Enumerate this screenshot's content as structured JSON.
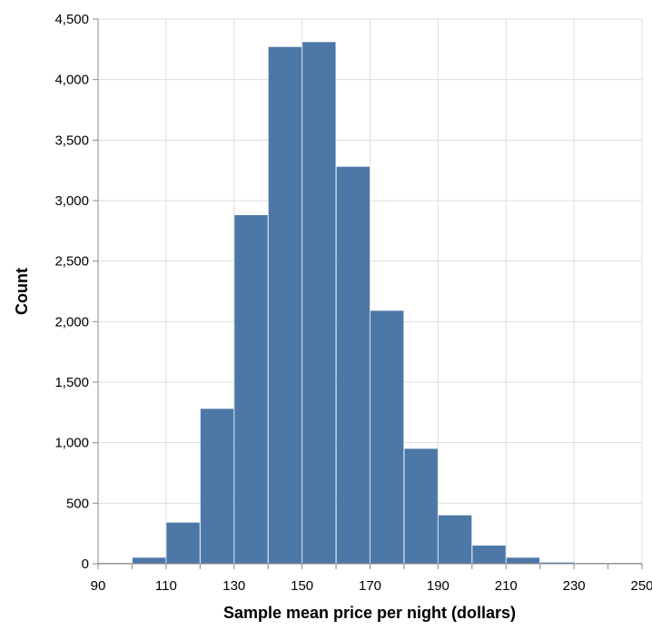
{
  "chart_data": {
    "type": "bar",
    "title": "",
    "xlabel": "Sample mean price per night (dollars)",
    "ylabel": "Count",
    "bin_width": 10,
    "xlim": [
      90,
      250
    ],
    "ylim": [
      0,
      4500
    ],
    "x_ticks": [
      90,
      110,
      130,
      150,
      170,
      190,
      210,
      230,
      250
    ],
    "y_ticks": [
      0,
      500,
      1000,
      1500,
      2000,
      2500,
      3000,
      3500,
      4000,
      4500
    ],
    "x_tick_labels": [
      "90",
      "110",
      "130",
      "150",
      "170",
      "190",
      "210",
      "230",
      "250"
    ],
    "y_tick_labels": [
      "0",
      "500",
      "1,000",
      "1,500",
      "2,000",
      "2,500",
      "3,000",
      "3,500",
      "4,000",
      "4,500"
    ],
    "bins": [
      {
        "start": 90,
        "count": 0
      },
      {
        "start": 100,
        "count": 50
      },
      {
        "start": 110,
        "count": 340
      },
      {
        "start": 120,
        "count": 1280
      },
      {
        "start": 130,
        "count": 2880
      },
      {
        "start": 140,
        "count": 4270
      },
      {
        "start": 150,
        "count": 4310
      },
      {
        "start": 160,
        "count": 3280
      },
      {
        "start": 170,
        "count": 2090
      },
      {
        "start": 180,
        "count": 950
      },
      {
        "start": 190,
        "count": 400
      },
      {
        "start": 200,
        "count": 150
      },
      {
        "start": 210,
        "count": 50
      },
      {
        "start": 220,
        "count": 10
      },
      {
        "start": 230,
        "count": 5
      },
      {
        "start": 240,
        "count": 5
      }
    ],
    "bar_color": "#4c78a8",
    "grid": true
  }
}
